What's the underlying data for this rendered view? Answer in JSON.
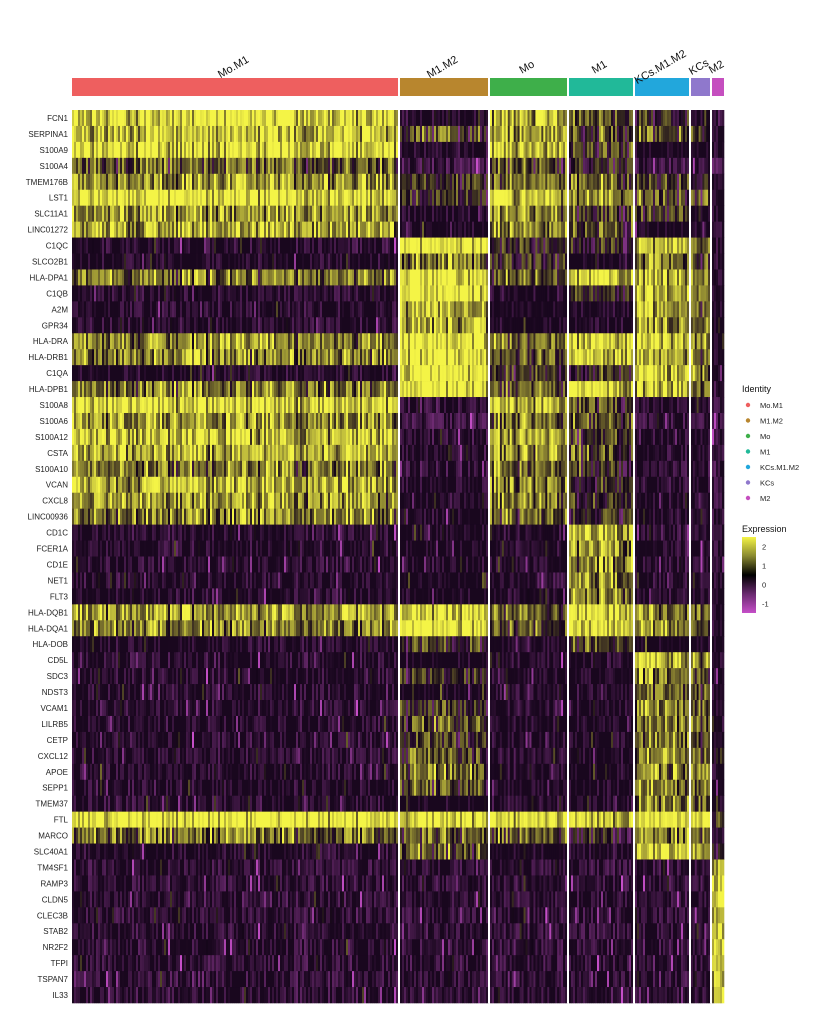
{
  "chart_data": {
    "type": "heatmap",
    "title": "",
    "groups": [
      {
        "name": "Mo.M1",
        "color": "#ee5f5f",
        "cells": 326
      },
      {
        "name": "M1.M2",
        "color": "#b8862e",
        "cells": 88
      },
      {
        "name": "Mo",
        "color": "#3eaf4a",
        "cells": 77
      },
      {
        "name": "M1",
        "color": "#21b999",
        "cells": 64
      },
      {
        "name": "KCs.M1.M2",
        "color": "#22a7dc",
        "cells": 54
      },
      {
        "name": "KCs",
        "color": "#8f78cc",
        "cells": 19
      },
      {
        "name": "M2",
        "color": "#c54fbf",
        "cells": 12
      }
    ],
    "genes": [
      "FCN1",
      "SERPINA1",
      "S100A9",
      "S100A4",
      "TMEM176B",
      "LST1",
      "SLC11A1",
      "LINC01272",
      "C1QC",
      "SLCO2B1",
      "HLA-DPA1",
      "C1QB",
      "A2M",
      "GPR34",
      "HLA-DRA",
      "HLA-DRB1",
      "C1QA",
      "HLA-DPB1",
      "S100A8",
      "S100A6",
      "S100A12",
      "CSTA",
      "S100A10",
      "VCAN",
      "CXCL8",
      "LINC00936",
      "CD1C",
      "FCER1A",
      "CD1E",
      "NET1",
      "FLT3",
      "HLA-DQB1",
      "HLA-DQA1",
      "HLA-DOB",
      "CD5L",
      "SDC3",
      "NDST3",
      "VCAM1",
      "LILRB5",
      "CETP",
      "CXCL12",
      "APOE",
      "SEPP1",
      "TMEM37",
      "FTL",
      "MARCO",
      "SLC40A1",
      "TM4SF1",
      "RAMP3",
      "CLDN5",
      "CLEC3B",
      "STAB2",
      "NR2F2",
      "TFPI",
      "TSPAN7",
      "IL33"
    ],
    "group_mean_expression": [
      [
        1.8,
        -0.2,
        1.5,
        0.6,
        0.2,
        0,
        -0.3
      ],
      [
        1.6,
        0.4,
        1.3,
        0.5,
        0.6,
        0.3,
        0
      ],
      [
        1.9,
        -0.3,
        1.6,
        0.5,
        0,
        0,
        -0.2
      ],
      [
        0.6,
        -0.8,
        0.5,
        0.2,
        -0.6,
        -0.6,
        -0.8
      ],
      [
        1.2,
        0.3,
        0.9,
        0.8,
        0.3,
        0.2,
        -0.2
      ],
      [
        1.9,
        0.2,
        1.7,
        1.2,
        0.6,
        0.5,
        0
      ],
      [
        1.2,
        -0.1,
        1.1,
        0.4,
        0.3,
        0,
        -0.2
      ],
      [
        1.3,
        -0.1,
        1.0,
        0.4,
        0,
        0,
        -0.3
      ],
      [
        -0.3,
        2.0,
        0.2,
        0.2,
        1.6,
        1.0,
        -0.2
      ],
      [
        -0.2,
        1.0,
        0.2,
        0.1,
        1.0,
        0.4,
        -0.3
      ],
      [
        0.9,
        2.0,
        0.6,
        1.7,
        1.4,
        0.9,
        -0.3
      ],
      [
        -0.3,
        2.0,
        0.1,
        0.2,
        1.6,
        1.0,
        -0.2
      ],
      [
        -0.3,
        1.4,
        0,
        0,
        1.2,
        0.8,
        0
      ],
      [
        -0.3,
        1.3,
        0,
        0,
        1.0,
        0.6,
        -0.3
      ],
      [
        1.1,
        2.0,
        0.7,
        1.8,
        1.5,
        1.0,
        -0.2
      ],
      [
        1.0,
        2.0,
        0.6,
        1.7,
        1.4,
        0.9,
        -0.3
      ],
      [
        -0.2,
        2.0,
        0.2,
        0.3,
        1.6,
        1.0,
        -0.3
      ],
      [
        0.9,
        2.0,
        0.6,
        1.7,
        1.5,
        0.9,
        -0.3
      ],
      [
        1.8,
        -0.5,
        1.5,
        0.5,
        -0.3,
        -0.3,
        -0.5
      ],
      [
        1.2,
        -0.8,
        1.0,
        0.6,
        -0.6,
        -0.6,
        -0.8
      ],
      [
        1.6,
        -0.4,
        1.3,
        0.4,
        -0.3,
        -0.3,
        -0.5
      ],
      [
        1.4,
        -0.2,
        1.2,
        0.6,
        -0.2,
        -0.2,
        -0.4
      ],
      [
        0.9,
        -0.6,
        0.8,
        0.4,
        -0.5,
        -0.5,
        -0.7
      ],
      [
        1.4,
        -0.2,
        1.1,
        0.2,
        -0.2,
        -0.2,
        -0.4
      ],
      [
        1.2,
        -0.1,
        1.0,
        0.3,
        0,
        -0.1,
        -0.3
      ],
      [
        1.0,
        -0.1,
        0.7,
        0.2,
        -0.1,
        -0.1,
        -0.3
      ],
      [
        -0.3,
        -0.2,
        -0.3,
        1.5,
        -0.3,
        -0.3,
        -0.3
      ],
      [
        -0.2,
        0,
        -0.2,
        1.2,
        -0.2,
        -0.2,
        -0.3
      ],
      [
        -0.3,
        -0.2,
        -0.3,
        1.1,
        -0.3,
        -0.3,
        -0.3
      ],
      [
        -0.2,
        0.1,
        -0.2,
        1.0,
        -0.2,
        -0.2,
        -0.2
      ],
      [
        -0.2,
        0.1,
        -0.1,
        1.0,
        -0.2,
        -0.2,
        -0.2
      ],
      [
        1.3,
        1.8,
        0.7,
        1.8,
        1.0,
        0.6,
        -0.2
      ],
      [
        1.0,
        1.9,
        0.6,
        1.9,
        1.2,
        0.7,
        -0.2
      ],
      [
        -0.2,
        0.3,
        -0.1,
        0.6,
        0.1,
        0,
        -0.2
      ],
      [
        -0.3,
        0.1,
        -0.3,
        -0.2,
        1.6,
        1.0,
        -0.3
      ],
      [
        -0.3,
        0.2,
        -0.2,
        -0.1,
        1.0,
        0.5,
        -0.2
      ],
      [
        -0.3,
        0.1,
        -0.3,
        -0.2,
        0.8,
        0.4,
        -0.2
      ],
      [
        -0.3,
        0.3,
        -0.2,
        0,
        1.0,
        0.6,
        0
      ],
      [
        -0.3,
        0.5,
        -0.2,
        0,
        0.9,
        0.5,
        -0.2
      ],
      [
        -0.3,
        0.3,
        -0.2,
        0,
        0.9,
        0.5,
        0
      ],
      [
        -0.3,
        0.6,
        -0.2,
        0,
        0.9,
        0.5,
        0.2
      ],
      [
        -0.2,
        0.7,
        -0.1,
        0.1,
        1.1,
        0.7,
        0
      ],
      [
        -0.2,
        0.6,
        -0.1,
        0.1,
        1.0,
        0.6,
        0
      ],
      [
        -0.3,
        0.1,
        -0.2,
        0,
        0.9,
        0.5,
        0
      ],
      [
        2.0,
        1.9,
        1.9,
        1.7,
        2.0,
        2.0,
        0.5
      ],
      [
        0.8,
        0.6,
        0.7,
        0.2,
        1.1,
        0.8,
        0
      ],
      [
        -0.2,
        0.6,
        0.1,
        -0.2,
        1.8,
        1.2,
        0.3
      ],
      [
        -0.4,
        -0.4,
        -0.4,
        -0.4,
        -0.4,
        -0.4,
        1.8
      ],
      [
        -0.4,
        -0.4,
        -0.4,
        -0.4,
        -0.4,
        -0.4,
        1.7
      ],
      [
        -0.4,
        -0.4,
        -0.4,
        -0.4,
        -0.4,
        -0.4,
        1.8
      ],
      [
        -0.4,
        -0.4,
        -0.4,
        -0.4,
        -0.4,
        -0.4,
        1.6
      ],
      [
        -0.4,
        -0.4,
        -0.4,
        -0.4,
        -0.4,
        -0.4,
        1.6
      ],
      [
        -0.4,
        -0.4,
        -0.4,
        -0.4,
        -0.4,
        -0.4,
        1.7
      ],
      [
        -0.4,
        -0.4,
        -0.4,
        -0.4,
        -0.4,
        -0.4,
        1.5
      ],
      [
        -0.4,
        -0.4,
        -0.4,
        -0.4,
        -0.4,
        -0.4,
        1.6
      ],
      [
        -0.4,
        -0.4,
        -0.4,
        -0.4,
        -0.4,
        -0.4,
        1.5
      ]
    ],
    "legend": {
      "identity_title": "Identity",
      "expression_title": "Expression",
      "expression_ticks": [
        "2",
        "1",
        "0",
        "-1"
      ],
      "expression_tick_values": [
        2,
        1,
        0,
        -1
      ],
      "color_range": [
        -1.5,
        2.5
      ],
      "placement": "right"
    },
    "colors": {
      "low": "#c54fc8",
      "mid": "#000000",
      "high": "#f4f446",
      "background": "#2a0a30"
    }
  }
}
